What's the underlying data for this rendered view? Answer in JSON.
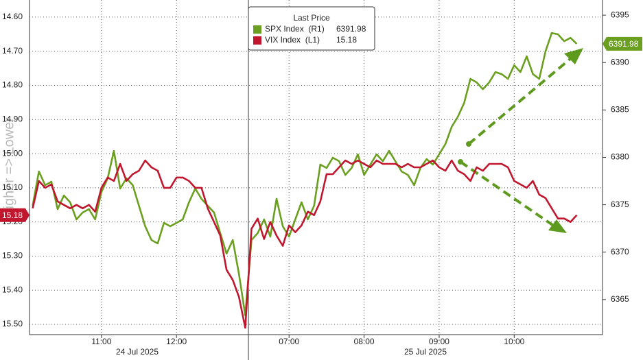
{
  "chart_data": {
    "type": "line",
    "legend_title": "Last Price",
    "y_label": "Higher => Lower",
    "date_labels": [
      "24 Jul 2025",
      "25 Jul 2025"
    ],
    "categories": [
      null,
      null,
      null,
      null,
      null,
      null,
      null,
      null,
      null,
      null,
      null,
      "11:00",
      null,
      null,
      null,
      null,
      null,
      null,
      null,
      null,
      null,
      null,
      null,
      "12:00",
      null,
      null,
      null,
      null,
      null,
      null,
      null,
      null,
      null,
      null,
      null,
      null,
      null,
      null,
      null,
      null,
      null,
      "07:00",
      null,
      null,
      null,
      null,
      null,
      null,
      null,
      null,
      null,
      null,
      null,
      "08:00",
      null,
      null,
      null,
      null,
      null,
      null,
      null,
      null,
      null,
      null,
      null,
      "09:00",
      null,
      null,
      null,
      null,
      null,
      null,
      null,
      null,
      null,
      null,
      null,
      "10:00",
      null,
      null,
      null,
      null,
      null,
      null,
      null,
      null,
      null,
      null
    ],
    "ylim": [
      15.53,
      14.55
    ],
    "yticks": [
      {
        "value": 14.6,
        "label": "14.60"
      },
      {
        "value": 14.7,
        "label": "14.70"
      },
      {
        "value": 14.8,
        "label": "14.80"
      },
      {
        "value": 14.9,
        "label": "14.90"
      },
      {
        "value": 15.0,
        "label": "15.00"
      },
      {
        "value": 15.1,
        "label": "15.10"
      },
      {
        "value": 15.2,
        "label": "15.20"
      },
      {
        "value": 15.3,
        "label": "15.30"
      },
      {
        "value": 15.4,
        "label": "15.40"
      },
      {
        "value": 15.5,
        "label": "15.50"
      }
    ],
    "y2lim": [
      6361.3,
      6396.6
    ],
    "y2ticks": [
      6365,
      6370,
      6375,
      6380,
      6385,
      6390,
      6395
    ],
    "grid": true,
    "series": [
      {
        "name": "SPX Index  (R1)",
        "color": "#6a9f1f",
        "axis": "y2",
        "values": [
          6374.9,
          6378.51,
          6377.07,
          6377.43,
          6374.54,
          6375.98,
          6375.26,
          6373.45,
          6374.18,
          6374.54,
          6373.45,
          6376.34,
          6377.79,
          6380.68,
          6376.71,
          6377.79,
          6377.07,
          6374.9,
          6372.73,
          6371.28,
          6370.92,
          6373.09,
          6372.73,
          6373.09,
          6373.45,
          6375.26,
          6376.71,
          6375.62,
          6374.9,
          6374.18,
          6372.01,
          6369.84,
          6371.28,
          6367.67,
          6363.33,
          6371.28,
          6372.01,
          6373.45,
          6371.64,
          6375.62,
          6372.73,
          6371.64,
          6373.45,
          6375.26,
          6373.45,
          6374.9,
          6379.24,
          6378.88,
          6379.96,
          6379.6,
          6378.15,
          6378.88,
          6380.32,
          6378.15,
          6379.24,
          6380.32,
          6379.6,
          6380.68,
          6379.6,
          6378.51,
          6378.15,
          6377.07,
          6378.88,
          6379.82,
          6379.24,
          6380.32,
          6381.41,
          6383.21,
          6384.3,
          6385.74,
          6388.28,
          6387.91,
          6387.19,
          6387.91,
          6389.0,
          6388.78,
          6388.28,
          6389.72,
          6389.0,
          6390.66,
          6388.78,
          6388.28,
          6391.17,
          6393.12,
          6392.98,
          6392.25,
          6392.61,
          6391.98
        ]
      },
      {
        "name": "VIX Index  (L1)",
        "color": "#c0162e",
        "values": [
          15.16,
          15.08,
          15.1,
          15.09,
          15.14,
          15.15,
          15.16,
          15.15,
          15.16,
          15.15,
          15.17,
          15.1,
          15.07,
          15.08,
          15.03,
          15.08,
          15.06,
          15.05,
          15.02,
          15.04,
          15.05,
          15.1,
          15.1,
          15.07,
          15.07,
          15.08,
          15.1,
          15.1,
          15.16,
          15.2,
          15.24,
          15.34,
          15.37,
          15.42,
          15.51,
          15.22,
          15.19,
          15.25,
          15.2,
          15.24,
          15.27,
          15.21,
          15.23,
          15.21,
          15.17,
          15.18,
          15.14,
          15.06,
          15.06,
          15.04,
          15.02,
          15.03,
          15.02,
          15.03,
          15.04,
          15.02,
          15.03,
          15.03,
          15.03,
          15.04,
          15.03,
          15.04,
          15.04,
          15.03,
          15.02,
          15.04,
          15.05,
          15.02,
          15.05,
          15.06,
          15.08,
          15.04,
          15.05,
          15.03,
          15.03,
          15.03,
          15.04,
          15.08,
          15.09,
          15.1,
          15.08,
          15.12,
          15.13,
          15.16,
          15.19,
          15.19,
          15.2,
          15.18
        ]
      }
    ]
  }
}
